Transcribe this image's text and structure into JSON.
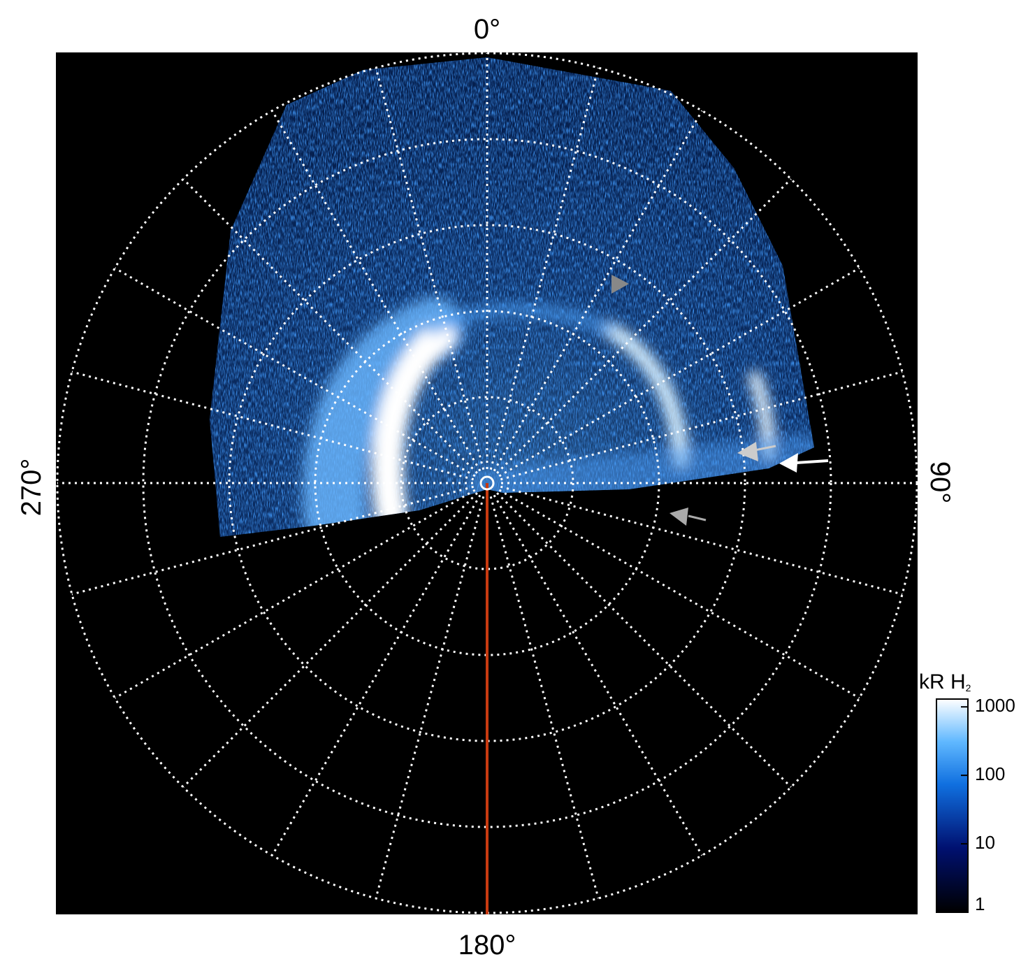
{
  "angle_labels": {
    "top": "0°",
    "bottom": "180°",
    "left": "270°",
    "right": "90°"
  },
  "colorbar": {
    "title": "kR H",
    "title_subscript": "2",
    "scale": "log",
    "lim": [
      1,
      1300
    ],
    "ticks": [
      1,
      10,
      100,
      1000
    ]
  }
}
